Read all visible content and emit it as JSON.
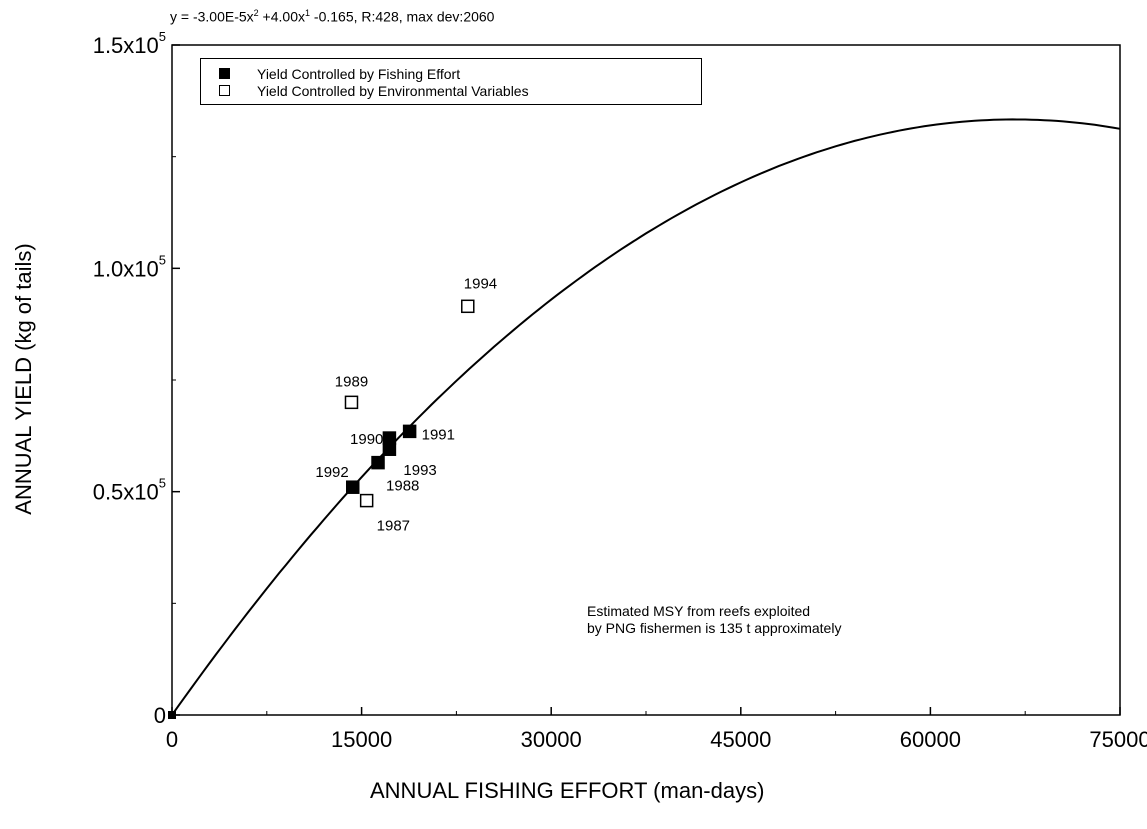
{
  "chart_data": {
    "type": "scatter",
    "equation": {
      "prefix": "y = -3.00E-5x",
      "exp1": "2",
      "mid": " +4.00x",
      "exp2": "1",
      "suffix": " -0.165, R:428, max dev:2060"
    },
    "xlabel": "ANNUAL FISHING EFFORT (man-days)",
    "ylabel": "ANNUAL YIELD (kg of tails)",
    "xlim": [
      0,
      75000
    ],
    "ylim": [
      0,
      150000
    ],
    "x_ticks": [
      0,
      15000,
      30000,
      45000,
      60000,
      75000
    ],
    "x_tick_labels": [
      "0",
      "15000",
      "30000",
      "45000",
      "60000",
      "75000"
    ],
    "y_ticks": [
      0,
      50000,
      100000,
      150000
    ],
    "y_tick_labels": [
      {
        "base": "0",
        "exp": ""
      },
      {
        "base": "0.5x10",
        "exp": "5"
      },
      {
        "base": "1.0x10",
        "exp": "5"
      },
      {
        "base": "1.5x10",
        "exp": "5"
      }
    ],
    "grid": false,
    "legend_position": "top-left",
    "series": [
      {
        "name": "Yield Controlled by Fishing Effort",
        "marker": "filled-square",
        "points": [
          {
            "label": "1992",
            "x": 14300,
            "y": 51000
          },
          {
            "label": "1988",
            "x": 16300,
            "y": 56500
          },
          {
            "label": "1990",
            "x": 17200,
            "y": 62000
          },
          {
            "label": "1993",
            "x": 17200,
            "y": 59500
          },
          {
            "label": "1991",
            "x": 18800,
            "y": 63500
          }
        ]
      },
      {
        "name": "Yield Controlled by Environmental Variables",
        "marker": "open-square",
        "points": [
          {
            "label": "1987",
            "x": 15400,
            "y": 48000
          },
          {
            "label": "1989",
            "x": 14200,
            "y": 70000
          },
          {
            "label": "1994",
            "x": 23400,
            "y": 91500
          }
        ]
      }
    ],
    "origin_point": {
      "x": 0,
      "y": 0
    },
    "fit_curve": {
      "a": -3e-05,
      "b": 4.0,
      "c": -0.165
    },
    "annotation_lines": [
      "Estimated MSY from reefs exploited",
      "by PNG fishermen is 135 t approximately"
    ]
  }
}
